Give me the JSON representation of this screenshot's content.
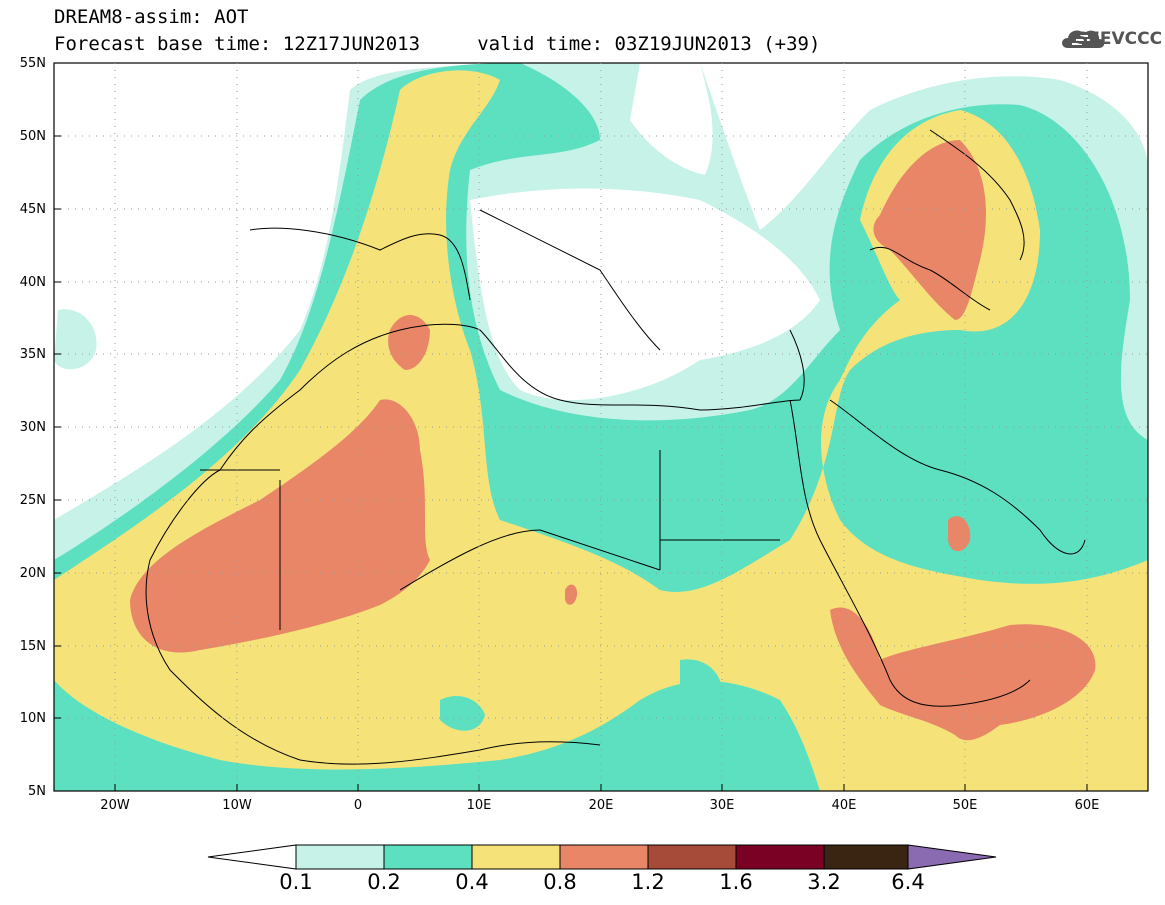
{
  "header": {
    "title_line1": "DREAM8-assim: AOT",
    "title_line2": "Forecast base time: 12Z17JUN2013     valid time: 03Z19JUN2013 (+39)"
  },
  "logo": {
    "text": "SEEVCCC",
    "icon": "cloud-logo-icon"
  },
  "map": {
    "projection": "lat-lon",
    "lon_range": [
      -25,
      65
    ],
    "lat_range": [
      5,
      55
    ],
    "grid_lines": "dotted",
    "lat_ticks": [
      "55N",
      "50N",
      "45N",
      "40N",
      "35N",
      "30N",
      "25N",
      "20N",
      "15N",
      "10N",
      "5N"
    ],
    "lon_ticks": [
      "20W",
      "10W",
      "0",
      "10E",
      "20E",
      "30E",
      "40E",
      "50E",
      "60E"
    ]
  },
  "colorbar": {
    "labels": [
      "0.1",
      "0.2",
      "0.4",
      "0.8",
      "1.2",
      "1.6",
      "3.2",
      "6.4"
    ],
    "colors": {
      "below": "#ffffff",
      "c1": "#c6f2e8",
      "c2": "#5de0c0",
      "c3": "#f5e37a",
      "c4": "#e98668",
      "c5": "#a64a3a",
      "c6": "#7a0024",
      "c7": "#3a2412",
      "above": "#8a6ab0"
    }
  }
}
